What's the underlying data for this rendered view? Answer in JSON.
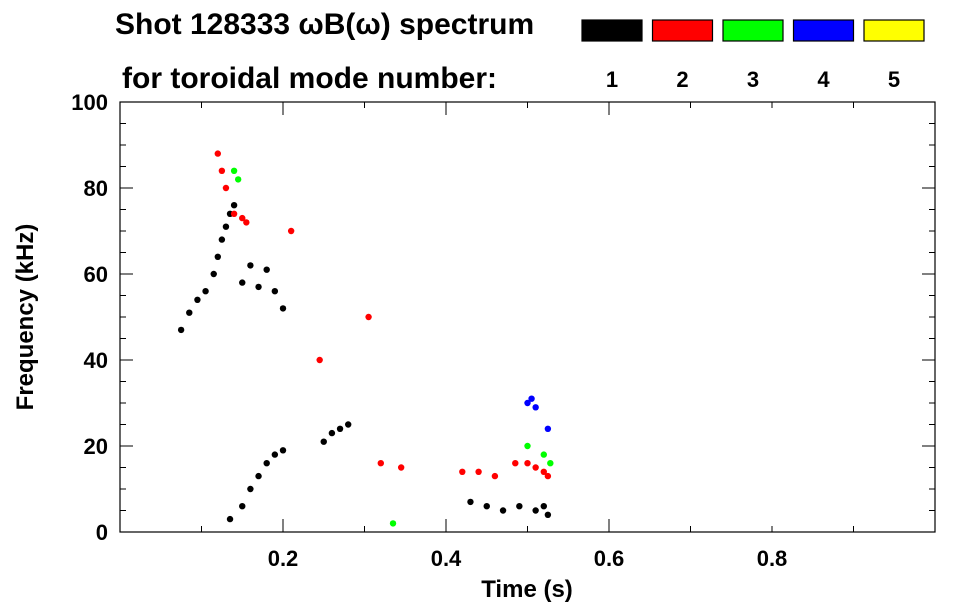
{
  "title": {
    "line1": "Shot 128333 ωB(ω) spectrum",
    "line2": "for toroidal mode number:"
  },
  "chart_data": {
    "type": "scatter",
    "xlabel": "Time (s)",
    "ylabel": "Frequency (kHz)",
    "xlim": [
      0.0,
      1.0
    ],
    "ylim": [
      0,
      100
    ],
    "xticks": [
      "0.2",
      "0.4",
      "0.6",
      "0.8"
    ],
    "xtick_values": [
      0.2,
      0.4,
      0.6,
      0.8
    ],
    "yticks": [
      "0",
      "20",
      "40",
      "60",
      "80",
      "100"
    ],
    "ytick_values": [
      0,
      20,
      40,
      60,
      80,
      100
    ],
    "grid": false,
    "legend_placement": "top-right",
    "series": [
      {
        "name": "1",
        "color": "#000000",
        "points": [
          [
            0.075,
            47
          ],
          [
            0.085,
            51
          ],
          [
            0.095,
            54
          ],
          [
            0.105,
            56
          ],
          [
            0.115,
            60
          ],
          [
            0.12,
            64
          ],
          [
            0.125,
            68
          ],
          [
            0.13,
            71
          ],
          [
            0.135,
            74
          ],
          [
            0.14,
            76
          ],
          [
            0.15,
            58
          ],
          [
            0.16,
            62
          ],
          [
            0.17,
            57
          ],
          [
            0.18,
            61
          ],
          [
            0.19,
            56
          ],
          [
            0.2,
            52
          ],
          [
            0.135,
            3
          ],
          [
            0.15,
            6
          ],
          [
            0.16,
            10
          ],
          [
            0.17,
            13
          ],
          [
            0.18,
            16
          ],
          [
            0.19,
            18
          ],
          [
            0.2,
            19
          ],
          [
            0.25,
            21
          ],
          [
            0.26,
            23
          ],
          [
            0.27,
            24
          ],
          [
            0.28,
            25
          ],
          [
            0.43,
            7
          ],
          [
            0.45,
            6
          ],
          [
            0.47,
            5
          ],
          [
            0.49,
            6
          ],
          [
            0.51,
            5
          ],
          [
            0.52,
            6
          ],
          [
            0.525,
            4
          ]
        ]
      },
      {
        "name": "2",
        "color": "#ff0000",
        "points": [
          [
            0.12,
            88
          ],
          [
            0.125,
            84
          ],
          [
            0.13,
            80
          ],
          [
            0.14,
            74
          ],
          [
            0.15,
            73
          ],
          [
            0.155,
            72
          ],
          [
            0.21,
            70
          ],
          [
            0.245,
            40
          ],
          [
            0.305,
            50
          ],
          [
            0.32,
            16
          ],
          [
            0.345,
            15
          ],
          [
            0.42,
            14
          ],
          [
            0.44,
            14
          ],
          [
            0.46,
            13
          ],
          [
            0.485,
            16
          ],
          [
            0.5,
            16
          ],
          [
            0.51,
            15
          ],
          [
            0.52,
            14
          ],
          [
            0.525,
            13
          ]
        ]
      },
      {
        "name": "3",
        "color": "#00ff00",
        "points": [
          [
            0.14,
            84
          ],
          [
            0.145,
            82
          ],
          [
            0.335,
            2
          ],
          [
            0.5,
            20
          ],
          [
            0.52,
            18
          ],
          [
            0.528,
            16
          ]
        ]
      },
      {
        "name": "4",
        "color": "#0000ff",
        "points": [
          [
            0.5,
            30
          ],
          [
            0.505,
            31
          ],
          [
            0.51,
            29
          ],
          [
            0.525,
            24
          ]
        ]
      },
      {
        "name": "5",
        "color": "#ffff00",
        "points": []
      }
    ]
  }
}
